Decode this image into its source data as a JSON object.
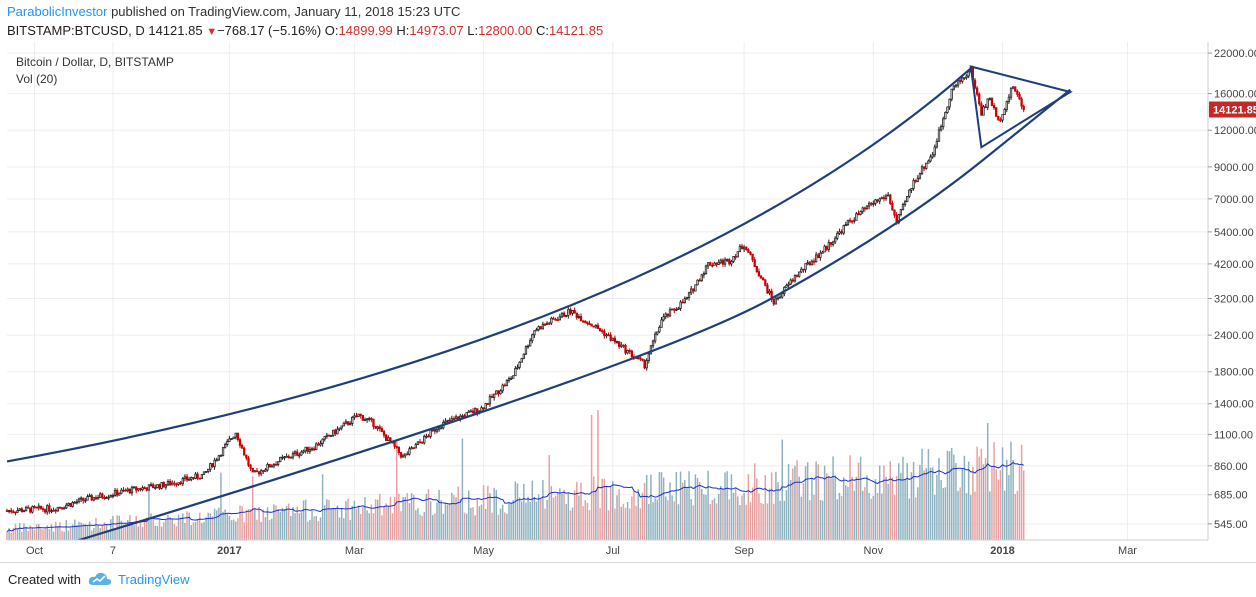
{
  "header": {
    "author": "ParabolicInvestor",
    "published": " published on TradingView.com, January 11, 2018 15:23 UTC",
    "symbol": "BITSTAMP:BTCUSD, D",
    "last": "14121.85",
    "change": "−768.17 (−5.16%)",
    "o_label": "O:",
    "o_value": "14899.99",
    "h_label": "H:",
    "h_value": "14973.07",
    "l_label": "L:",
    "l_value": "12800.00",
    "c_label": "C:",
    "c_value": "14121.85"
  },
  "legend": {
    "series": "Bitcoin / Dollar, D, BITSTAMP",
    "volume": "Vol (20)"
  },
  "footer": {
    "created": "Created with",
    "brand": "TradingView"
  },
  "colors": {
    "up": "#222222",
    "down": "#cc0000",
    "channel": "#1f3f7a",
    "vol_up": "#8fb2bf",
    "vol_down": "#e8a0a0",
    "vol_ma": "#1a2fd0",
    "price_badge": "#c62828"
  },
  "chart_data": {
    "type": "candlestick",
    "y_scale": "log",
    "ylim": [
      480,
      24000
    ],
    "x_range": [
      "2016-09-18",
      "2018-04-08"
    ],
    "y_ticks": [
      "22000.00",
      "16000.00",
      "12000.00",
      "9000.00",
      "7000.00",
      "5400.00",
      "4200.00",
      "3200.00",
      "2400.00",
      "1800.00",
      "1400.00",
      "1100.00",
      "860.00",
      "685.00",
      "545.00"
    ],
    "y_tick_values": [
      22000,
      16000,
      12000,
      9000,
      7000,
      5400,
      4200,
      3200,
      2400,
      1800,
      1400,
      1100,
      860,
      685,
      545
    ],
    "x_ticks": [
      {
        "label": "Oct",
        "date": "2016-10-01",
        "bold": false
      },
      {
        "label": "7",
        "date": "2016-11-07",
        "bold": false
      },
      {
        "label": "2017",
        "date": "2017-01-01",
        "bold": true
      },
      {
        "label": "Mar",
        "date": "2017-03-01",
        "bold": false
      },
      {
        "label": "May",
        "date": "2017-05-01",
        "bold": false
      },
      {
        "label": "Jul",
        "date": "2017-07-01",
        "bold": false
      },
      {
        "label": "Sep",
        "date": "2017-09-01",
        "bold": false
      },
      {
        "label": "Nov",
        "date": "2017-11-01",
        "bold": false
      },
      {
        "label": "2018",
        "date": "2018-01-01",
        "bold": true
      },
      {
        "label": "Mar",
        "date": "2018-03-01",
        "bold": false
      }
    ],
    "last_price": "14121.85",
    "price_path": [
      [
        "2016-09-18",
        605
      ],
      [
        "2016-10-10",
        615
      ],
      [
        "2016-10-25",
        660
      ],
      [
        "2016-11-15",
        710
      ],
      [
        "2016-12-01",
        740
      ],
      [
        "2016-12-20",
        800
      ],
      [
        "2017-01-04",
        1120
      ],
      [
        "2017-01-12",
        800
      ],
      [
        "2017-01-25",
        900
      ],
      [
        "2017-02-10",
        1000
      ],
      [
        "2017-03-03",
        1280
      ],
      [
        "2017-03-10",
        1200
      ],
      [
        "2017-03-24",
        920
      ],
      [
        "2017-04-10",
        1180
      ],
      [
        "2017-04-30",
        1350
      ],
      [
        "2017-05-15",
        1750
      ],
      [
        "2017-05-25",
        2500
      ],
      [
        "2017-06-11",
        2900
      ],
      [
        "2017-06-25",
        2500
      ],
      [
        "2017-07-16",
        1900
      ],
      [
        "2017-07-24",
        2700
      ],
      [
        "2017-08-05",
        3200
      ],
      [
        "2017-08-15",
        4200
      ],
      [
        "2017-08-25",
        4300
      ],
      [
        "2017-09-01",
        4900
      ],
      [
        "2017-09-15",
        3100
      ],
      [
        "2017-09-25",
        3800
      ],
      [
        "2017-10-10",
        4800
      ],
      [
        "2017-10-20",
        5800
      ],
      [
        "2017-11-01",
        6800
      ],
      [
        "2017-11-08",
        7200
      ],
      [
        "2017-11-12",
        5800
      ],
      [
        "2017-11-20",
        8000
      ],
      [
        "2017-11-29",
        10000
      ],
      [
        "2017-12-08",
        16500
      ],
      [
        "2017-12-17",
        19300
      ],
      [
        "2017-12-22",
        13800
      ],
      [
        "2017-12-26",
        15500
      ],
      [
        "2017-12-30",
        12800
      ],
      [
        "2018-01-06",
        17000
      ],
      [
        "2018-01-11",
        14122
      ]
    ],
    "channel": {
      "upper": [
        [
          "2016-09-18",
          890
        ],
        [
          "2017-06-12",
          3050
        ],
        [
          "2017-12-17",
          19500
        ]
      ],
      "lower": [
        [
          "2016-10-18",
          470
        ],
        [
          "2017-07-16",
          1850
        ],
        [
          "2017-11-12",
          5500
        ],
        [
          "2018-02-02",
          16500
        ]
      ],
      "triangle": [
        [
          "2017-12-17",
          19800
        ],
        [
          "2018-02-02",
          16200
        ],
        [
          "2017-12-22",
          10500
        ]
      ]
    }
  }
}
